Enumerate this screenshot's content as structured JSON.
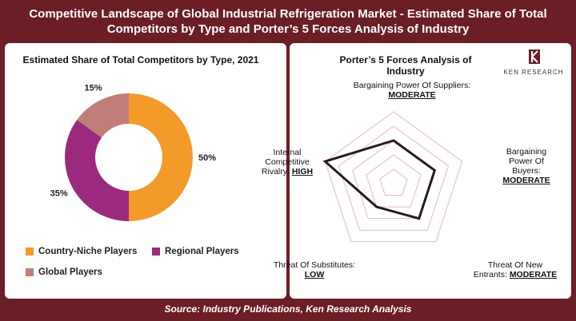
{
  "title": {
    "line1": "Competitive Landscape of Global Industrial Refrigeration Market - Estimated Share of Total",
    "line2": "Competitors by Type and Porter’s 5 Forces Analysis of Industry"
  },
  "footer": "Source: Industry Publications, Ken Research Analysis",
  "logo_text": "KEN RESEARCH",
  "chart_data": [
    {
      "type": "pie",
      "title": "Estimated Share of Total Competitors by Type, 2021",
      "categories": [
        "Country-Niche Players",
        "Regional Players",
        "Global Players"
      ],
      "values": [
        50,
        35,
        15
      ],
      "labels": [
        "50%",
        "35%",
        "15%"
      ],
      "colors": [
        "#f39a28",
        "#9b2a7f",
        "#c07d78"
      ],
      "donut": true,
      "legend_position": "bottom-left"
    },
    {
      "type": "radar",
      "title": "Porter’s 5 Forces Analysis of Industry",
      "axes": [
        {
          "name": "Bargaining Power Of Suppliers:",
          "level": "MODERATE"
        },
        {
          "name": "Bargaining Power Of Buyers:",
          "level": "MODERATE"
        },
        {
          "name": "Threat Of New Entrants:",
          "level": "MODERATE"
        },
        {
          "name": "Threat Of Substitutes:",
          "level": "LOW"
        },
        {
          "name": "Internal Competitive Rivalry:",
          "level": "HIGH"
        }
      ],
      "values": [
        3,
        3,
        3,
        2,
        5
      ],
      "max": 5,
      "line_color": "#2a1a1a",
      "grid_color": "#e6b8b8"
    }
  ]
}
